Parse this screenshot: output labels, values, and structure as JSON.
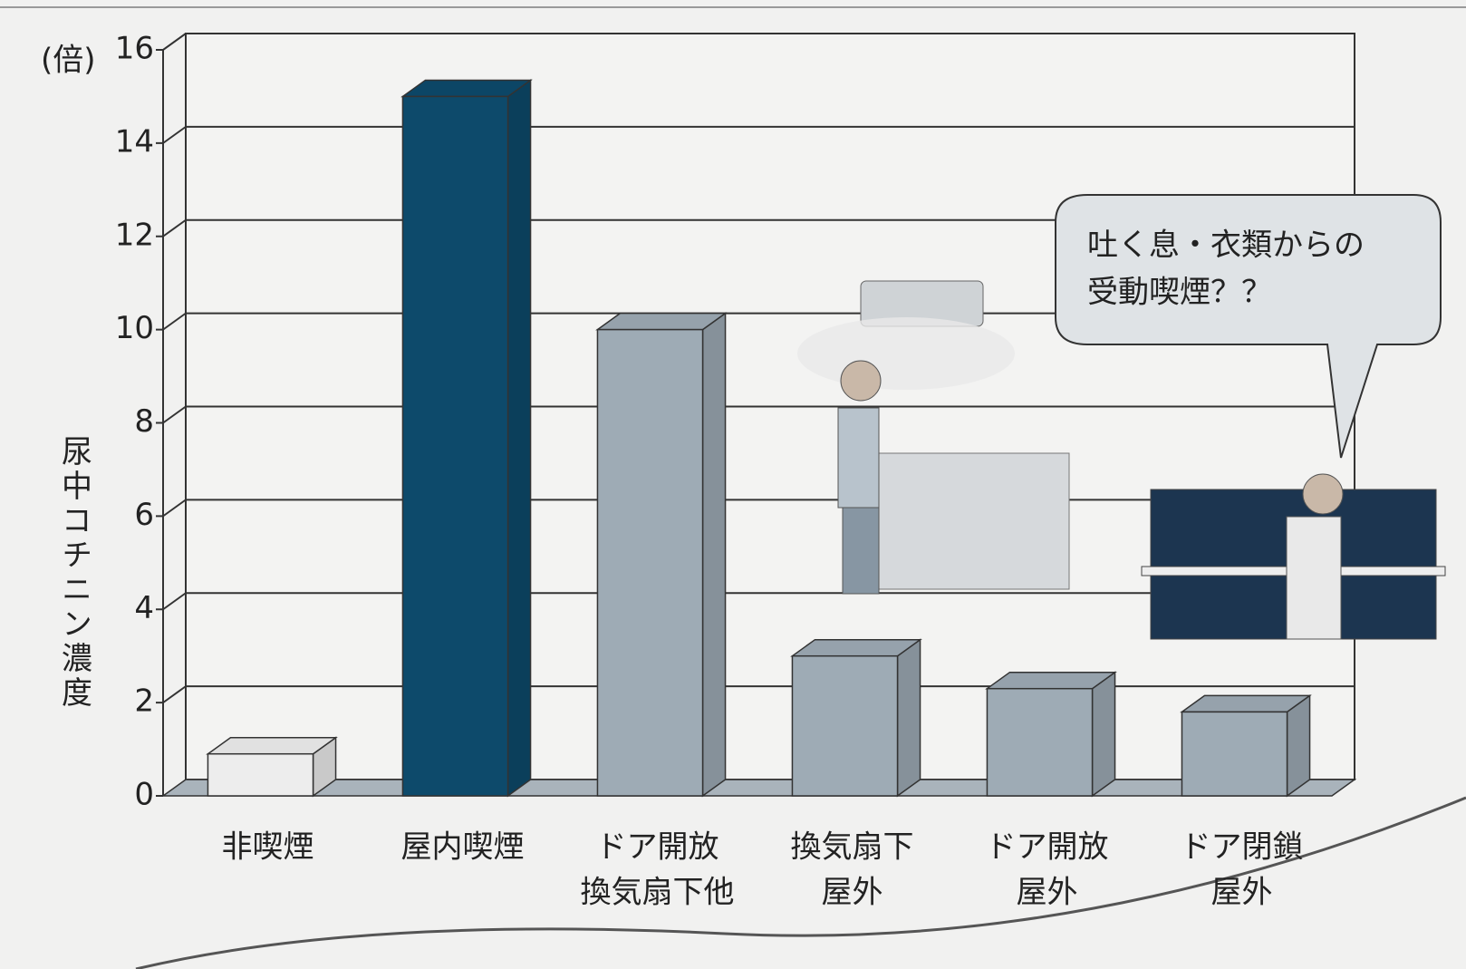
{
  "chart_data": {
    "type": "bar3d",
    "y_unit": "(倍)",
    "y_label": "尿中コチニン濃度",
    "categories": [
      [
        "非喫煙"
      ],
      [
        "屋内喫煙"
      ],
      [
        "ドア開放",
        "換気扇下他"
      ],
      [
        "換気扇下",
        "屋外"
      ],
      [
        "ドア開放",
        "屋外"
      ],
      [
        "ドア閉鎖",
        "屋外"
      ]
    ],
    "values": [
      0.9,
      15,
      10,
      3,
      2.3,
      1.8
    ],
    "colors": [
      "#ededed",
      "#0d4a6b",
      "#9eabb5",
      "#9eabb5",
      "#9eabb5",
      "#9eabb5"
    ],
    "ylim": [
      0,
      16
    ],
    "yticks": [
      0,
      2,
      4,
      6,
      8,
      10,
      12,
      14,
      16
    ],
    "grid": true,
    "annotation": [
      "吐く息・衣類からの",
      "受動喫煙？？"
    ]
  }
}
